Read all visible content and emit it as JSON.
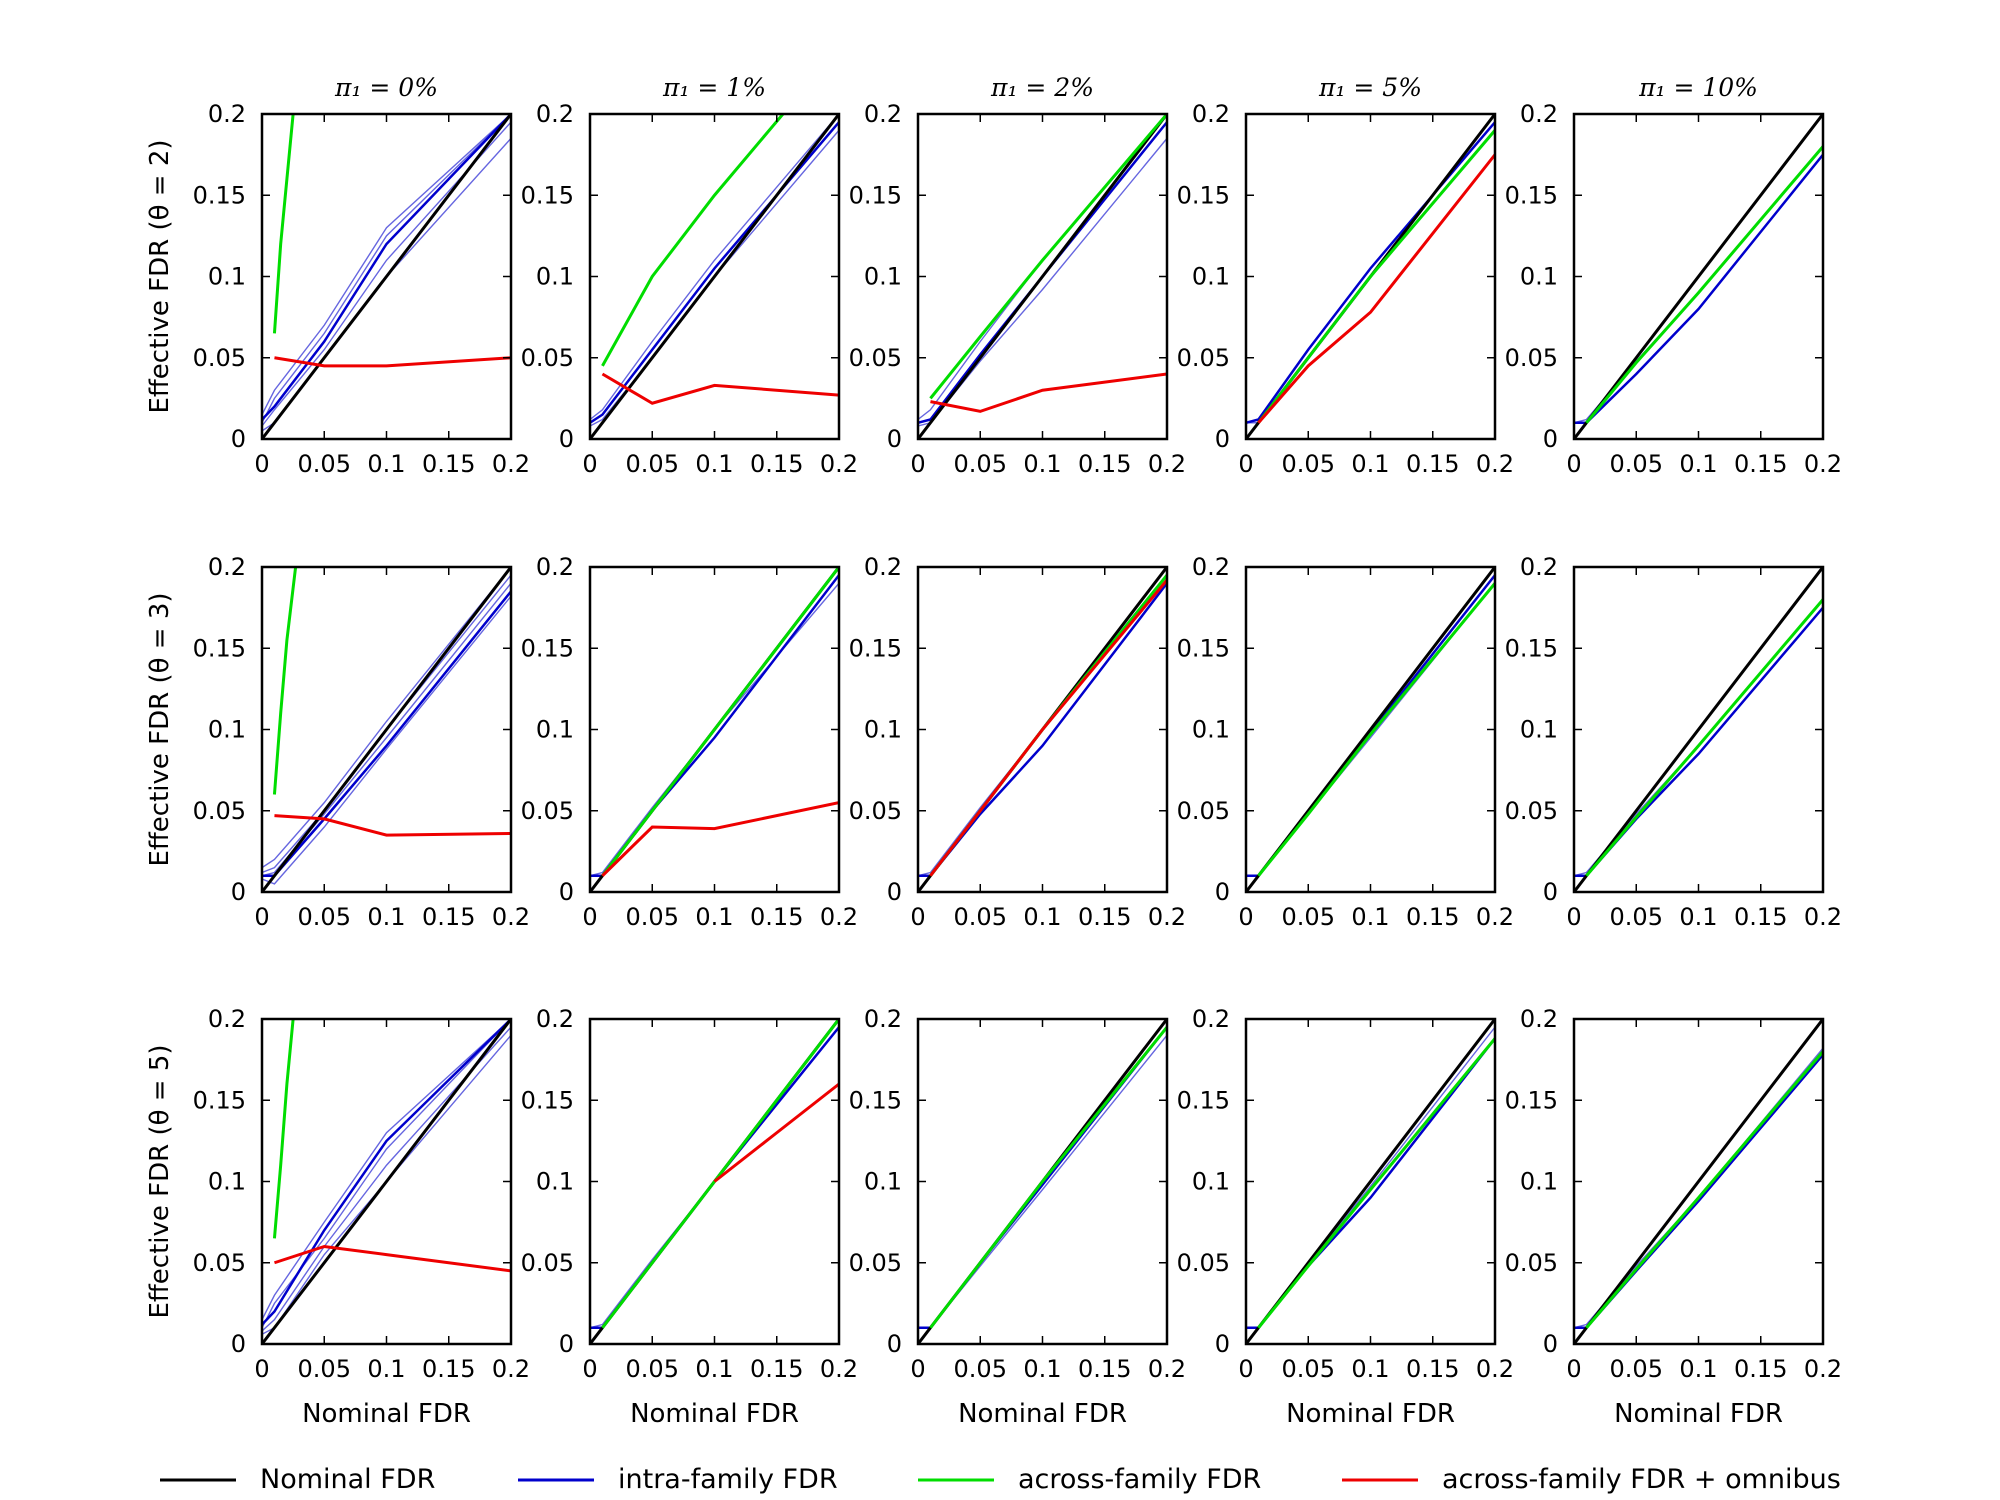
{
  "chart_data": {
    "type": "line",
    "layout": "grid-3x5",
    "xlabel": "Nominal FDR",
    "column_titles": [
      "π₁ = 0%",
      "π₁ = 1%",
      "π₁ = 2%",
      "π₁ = 5%",
      "π₁ = 10%"
    ],
    "row_labels": [
      "Effective FDR (θ = 2)",
      "Effective FDR (θ = 3)",
      "Effective FDR (θ = 5)"
    ],
    "xlim": [
      0,
      0.2
    ],
    "ylim": [
      0,
      0.2
    ],
    "xticks": [
      "0",
      "0.05",
      "0.1",
      "0.15",
      "0.2"
    ],
    "yticks": [
      "0",
      "0.05",
      "0.1",
      "0.15",
      "0.2"
    ],
    "x": [
      0.01,
      0.05,
      0.1,
      0.2
    ],
    "legend": {
      "placement": "bottom",
      "entries": [
        {
          "name": "Nominal FDR",
          "color": "#000000"
        },
        {
          "name": "intra-family FDR",
          "color": "#0000cc"
        },
        {
          "name": "across-family FDR",
          "color": "#00dd00"
        },
        {
          "name": "across-family FDR + omnibus",
          "color": "#ee0000"
        }
      ]
    },
    "panels": [
      [
        {
          "blue": [
            [
              0.012,
              0.02,
              0.06,
              0.12,
              0.2
            ],
            [
              0.008,
              0.018,
              0.055,
              0.11,
              0.195
            ],
            [
              0.01,
              0.025,
              0.065,
              0.125,
              0.2
            ],
            [
              0.005,
              0.01,
              0.05,
              0.1,
              0.185
            ],
            [
              0.015,
              0.03,
              0.07,
              0.13,
              0.2
            ]
          ],
          "green": [
            [
              0.01,
              0.065
            ],
            [
              0.015,
              0.12
            ],
            [
              0.02,
              0.16
            ],
            [
              0.025,
              0.2
            ]
          ],
          "red": [
            [
              0.01,
              0.05
            ],
            [
              0.05,
              0.045
            ],
            [
              0.1,
              0.045
            ],
            [
              0.2,
              0.05
            ]
          ]
        },
        {
          "blue": [
            [
              0.01,
              0.015,
              0.055,
              0.105,
              0.195
            ],
            [
              0.012,
              0.018,
              0.06,
              0.11,
              0.2
            ],
            [
              0.008,
              0.012,
              0.05,
              0.1,
              0.19
            ]
          ],
          "green": [
            [
              0.01,
              0.045
            ],
            [
              0.05,
              0.1
            ],
            [
              0.1,
              0.15
            ],
            [
              0.155,
              0.2
            ]
          ],
          "red": [
            [
              0.01,
              0.04
            ],
            [
              0.05,
              0.022
            ],
            [
              0.1,
              0.033
            ],
            [
              0.2,
              0.027
            ]
          ]
        },
        {
          "blue": [
            [
              0.01,
              0.012,
              0.052,
              0.1,
              0.195
            ],
            [
              0.012,
              0.018,
              0.06,
              0.11,
              0.2
            ],
            [
              0.008,
              0.01,
              0.048,
              0.092,
              0.185
            ]
          ],
          "green": [
            [
              0.01,
              0.025
            ],
            [
              0.05,
              0.063
            ],
            [
              0.1,
              0.11
            ],
            [
              0.2,
              0.2
            ]
          ],
          "red": [
            [
              0.01,
              0.023
            ],
            [
              0.05,
              0.017
            ],
            [
              0.1,
              0.03
            ],
            [
              0.2,
              0.04
            ]
          ]
        },
        {
          "blue": [
            [
              0.01,
              0.012,
              0.055,
              0.105,
              0.195
            ],
            [
              0.01,
              0.01,
              0.05,
              0.1,
              0.2
            ]
          ],
          "green": [
            [
              0.01,
              0.01
            ],
            [
              0.05,
              0.05
            ],
            [
              0.1,
              0.1
            ],
            [
              0.2,
              0.19
            ]
          ],
          "red": [
            [
              0.01,
              0.01
            ],
            [
              0.05,
              0.045
            ],
            [
              0.1,
              0.078
            ],
            [
              0.2,
              0.175
            ]
          ]
        },
        {
          "blue": [
            [
              0.01,
              0.01,
              0.04,
              0.08,
              0.175
            ],
            [
              0.01,
              0.012,
              0.048,
              0.09,
              0.18
            ]
          ],
          "green": [
            [
              0.01,
              0.01
            ],
            [
              0.05,
              0.047
            ],
            [
              0.1,
              0.09
            ],
            [
              0.2,
              0.18
            ]
          ],
          "red": []
        }
      ],
      [
        {
          "blue": [
            [
              0.01,
              0.01,
              0.045,
              0.09,
              0.185
            ],
            [
              0.012,
              0.015,
              0.05,
              0.1,
              0.195
            ],
            [
              0.008,
              0.005,
              0.04,
              0.088,
              0.182
            ],
            [
              0.015,
              0.02,
              0.055,
              0.105,
              0.2
            ],
            [
              0.01,
              0.012,
              0.048,
              0.095,
              0.19
            ]
          ],
          "green": [
            [
              0.01,
              0.06
            ],
            [
              0.015,
              0.11
            ],
            [
              0.02,
              0.155
            ],
            [
              0.027,
              0.2
            ]
          ],
          "red": [
            [
              0.01,
              0.047
            ],
            [
              0.05,
              0.045
            ],
            [
              0.1,
              0.035
            ],
            [
              0.2,
              0.036
            ]
          ]
        },
        {
          "blue": [
            [
              0.01,
              0.01,
              0.05,
              0.095,
              0.195
            ],
            [
              0.01,
              0.012,
              0.052,
              0.1,
              0.19
            ]
          ],
          "green": [
            [
              0.01,
              0.01
            ],
            [
              0.05,
              0.05
            ],
            [
              0.1,
              0.1
            ],
            [
              0.2,
              0.2
            ]
          ],
          "red": [
            [
              0.01,
              0.01
            ],
            [
              0.05,
              0.04
            ],
            [
              0.1,
              0.039
            ],
            [
              0.2,
              0.055
            ]
          ]
        },
        {
          "blue": [
            [
              0.01,
              0.01,
              0.048,
              0.09,
              0.19
            ],
            [
              0.01,
              0.012,
              0.052,
              0.1,
              0.195
            ]
          ],
          "green": [
            [
              0.01,
              0.01
            ],
            [
              0.05,
              0.05
            ],
            [
              0.1,
              0.1
            ],
            [
              0.2,
              0.195
            ]
          ],
          "red": [
            [
              0.01,
              0.01
            ],
            [
              0.05,
              0.05
            ],
            [
              0.1,
              0.1
            ],
            [
              0.2,
              0.192
            ]
          ]
        },
        {
          "blue": [
            [
              0.01,
              0.01,
              0.05,
              0.098,
              0.195
            ],
            [
              0.01,
              0.01,
              0.048,
              0.095,
              0.19
            ]
          ],
          "green": [
            [
              0.01,
              0.01
            ],
            [
              0.05,
              0.048
            ],
            [
              0.1,
              0.097
            ],
            [
              0.2,
              0.19
            ]
          ],
          "red": []
        },
        {
          "blue": [
            [
              0.01,
              0.01,
              0.045,
              0.085,
              0.175
            ],
            [
              0.01,
              0.012,
              0.048,
              0.09,
              0.18
            ]
          ],
          "green": [
            [
              0.01,
              0.01
            ],
            [
              0.05,
              0.046
            ],
            [
              0.1,
              0.09
            ],
            [
              0.2,
              0.18
            ]
          ],
          "red": []
        }
      ],
      [
        {
          "blue": [
            [
              0.012,
              0.02,
              0.07,
              0.125,
              0.2
            ],
            [
              0.008,
              0.015,
              0.06,
              0.11,
              0.195
            ],
            [
              0.01,
              0.025,
              0.065,
              0.12,
              0.2
            ],
            [
              0.006,
              0.01,
              0.055,
              0.1,
              0.19
            ],
            [
              0.015,
              0.03,
              0.075,
              0.13,
              0.2
            ]
          ],
          "green": [
            [
              0.01,
              0.065
            ],
            [
              0.015,
              0.11
            ],
            [
              0.02,
              0.16
            ],
            [
              0.025,
              0.2
            ]
          ],
          "red": [
            [
              0.01,
              0.05
            ],
            [
              0.05,
              0.06
            ],
            [
              0.1,
              0.055
            ],
            [
              0.2,
              0.045
            ]
          ]
        },
        {
          "blue": [
            [
              0.01,
              0.01,
              0.05,
              0.1,
              0.195
            ],
            [
              0.01,
              0.012,
              0.052,
              0.1,
              0.2
            ]
          ],
          "green": [
            [
              0.01,
              0.01
            ],
            [
              0.05,
              0.05
            ],
            [
              0.1,
              0.1
            ],
            [
              0.2,
              0.2
            ]
          ],
          "red": [
            [
              0.1,
              0.1
            ],
            [
              0.15,
              0.13
            ],
            [
              0.2,
              0.16
            ]
          ]
        },
        {
          "blue": [
            [
              0.01,
              0.01,
              0.05,
              0.098,
              0.195
            ],
            [
              0.01,
              0.01,
              0.048,
              0.095,
              0.19
            ]
          ],
          "green": [
            [
              0.01,
              0.01
            ],
            [
              0.05,
              0.05
            ],
            [
              0.1,
              0.1
            ],
            [
              0.2,
              0.195
            ]
          ],
          "red": []
        },
        {
          "blue": [
            [
              0.01,
              0.01,
              0.048,
              0.09,
              0.188
            ],
            [
              0.01,
              0.01,
              0.05,
              0.097,
              0.195
            ]
          ],
          "green": [
            [
              0.01,
              0.01
            ],
            [
              0.05,
              0.048
            ],
            [
              0.1,
              0.095
            ],
            [
              0.2,
              0.188
            ]
          ],
          "red": []
        },
        {
          "blue": [
            [
              0.01,
              0.01,
              0.045,
              0.088,
              0.178
            ],
            [
              0.01,
              0.012,
              0.048,
              0.09,
              0.182
            ]
          ],
          "green": [
            [
              0.01,
              0.01
            ],
            [
              0.05,
              0.046
            ],
            [
              0.1,
              0.09
            ],
            [
              0.2,
              0.18
            ]
          ],
          "red": []
        }
      ]
    ]
  }
}
